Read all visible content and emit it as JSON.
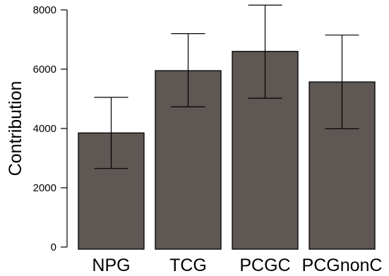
{
  "chart_data": {
    "type": "bar",
    "title": "",
    "xlabel": "",
    "ylabel": "Contribution",
    "ylim": [
      0,
      8000
    ],
    "yticks": [
      0,
      2000,
      4000,
      6000,
      8000
    ],
    "categories": [
      "NPG",
      "TCG",
      "PCGC",
      "PCGnonC"
    ],
    "values": [
      3850,
      5950,
      6600,
      5570
    ],
    "error_low": [
      2650,
      4730,
      5020,
      3990
    ],
    "error_high": [
      5050,
      7200,
      8160,
      7150
    ],
    "bar_color": "#5e5753",
    "bar_edge_color": "#000000",
    "grid": false,
    "legend": "none"
  }
}
